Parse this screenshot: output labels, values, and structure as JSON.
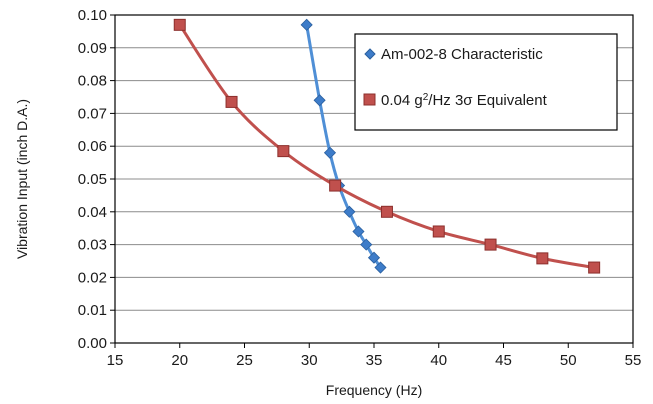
{
  "chart_data": {
    "type": "line",
    "xlabel": "Frequency (Hz)",
    "ylabel": "Vibration Input (inch D.A.)",
    "xlim": [
      15,
      55
    ],
    "ylim": [
      0,
      0.1
    ],
    "x_ticks": [
      "15",
      "20",
      "25",
      "30",
      "35",
      "40",
      "45",
      "50",
      "55"
    ],
    "y_ticks": [
      "0.00",
      "0.01",
      "0.02",
      "0.03",
      "0.04",
      "0.05",
      "0.06",
      "0.07",
      "0.08",
      "0.09",
      "0.10"
    ],
    "grid": true,
    "legend_position": "top-right",
    "series": [
      {
        "name": "Am-002-8 Characteristic",
        "color": "#4f8fd6",
        "marker": "diamond",
        "points": [
          {
            "x": 29.8,
            "y": 0.097
          },
          {
            "x": 30.8,
            "y": 0.074
          },
          {
            "x": 31.6,
            "y": 0.058
          },
          {
            "x": 32.3,
            "y": 0.048
          },
          {
            "x": 33.1,
            "y": 0.04
          },
          {
            "x": 33.8,
            "y": 0.034
          },
          {
            "x": 34.4,
            "y": 0.03
          },
          {
            "x": 35.0,
            "y": 0.026
          },
          {
            "x": 35.5,
            "y": 0.023
          }
        ]
      },
      {
        "name": "0.04 g²/Hz 3σ Equivalent",
        "name_parts": {
          "pre": "0.04 g",
          "sup": "2",
          "post": "/Hz 3σ Equivalent"
        },
        "color": "#c0504d",
        "marker": "square",
        "points": [
          {
            "x": 20,
            "y": 0.097
          },
          {
            "x": 24,
            "y": 0.0735
          },
          {
            "x": 28,
            "y": 0.0585
          },
          {
            "x": 32,
            "y": 0.048
          },
          {
            "x": 36,
            "y": 0.04
          },
          {
            "x": 40,
            "y": 0.034
          },
          {
            "x": 44,
            "y": 0.03
          },
          {
            "x": 48,
            "y": 0.0258
          },
          {
            "x": 52,
            "y": 0.023
          }
        ]
      }
    ]
  }
}
